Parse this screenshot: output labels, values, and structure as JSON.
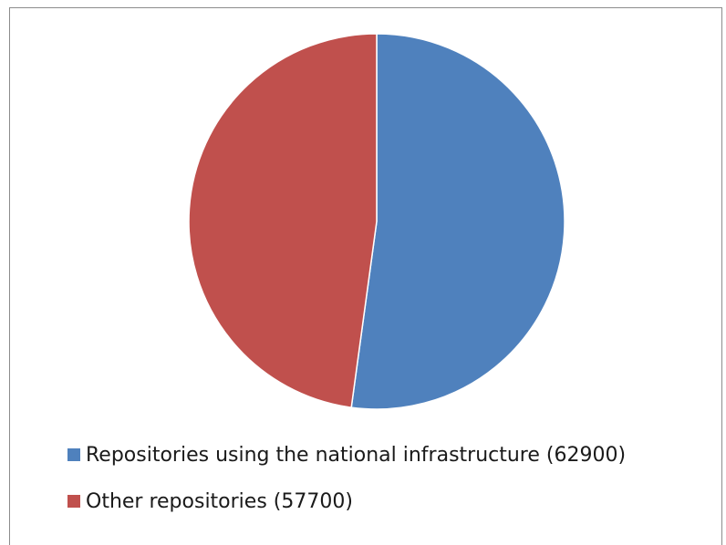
{
  "chart_data": {
    "type": "pie",
    "title": "",
    "series": [
      {
        "name": "Repositories using the national infrastructure (62900)",
        "value": 62900,
        "color": "#4f81bd"
      },
      {
        "name": "Other repositories (57700)",
        "value": 57700,
        "color": "#c0504d"
      }
    ],
    "start_angle_deg": 0,
    "direction": "clockwise",
    "legend_position": "bottom"
  }
}
